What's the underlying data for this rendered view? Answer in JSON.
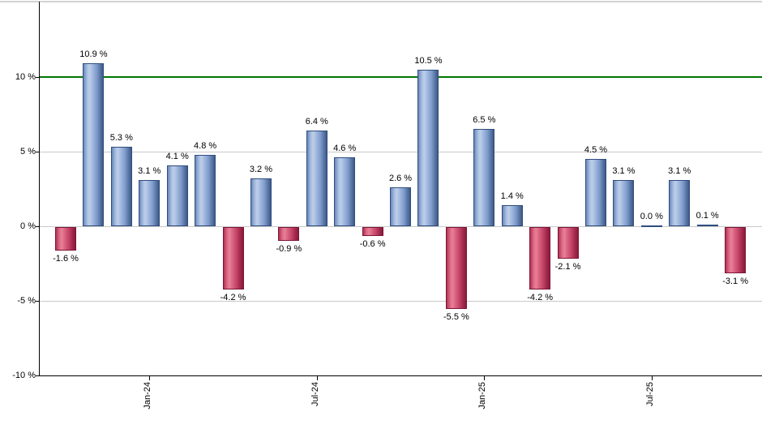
{
  "chart_data": {
    "type": "bar",
    "title": "",
    "values": [
      -1.6,
      10.9,
      5.3,
      3.1,
      4.1,
      4.8,
      -4.2,
      3.2,
      -0.9,
      6.4,
      4.6,
      -0.6,
      2.6,
      10.5,
      -5.5,
      6.5,
      1.4,
      -4.2,
      -2.1,
      4.5,
      3.1,
      0.0,
      3.1,
      0.1,
      -3.1
    ],
    "value_label_suffix": " %",
    "x_axis": {
      "ticks": [
        {
          "index": 3,
          "label": "Jan-24"
        },
        {
          "index": 9,
          "label": "Jul-24"
        },
        {
          "index": 15,
          "label": "Jan-25"
        },
        {
          "index": 21,
          "label": "Jul-25"
        }
      ]
    },
    "y_axis": {
      "ticks": [
        {
          "value": 10,
          "label": "10 %"
        },
        {
          "value": 5,
          "label": "5 %"
        },
        {
          "value": 0,
          "label": "0 %"
        },
        {
          "value": -5,
          "label": "-5 %"
        },
        {
          "value": -10,
          "label": "-10 %"
        }
      ],
      "min": -10,
      "max": 14.7,
      "grid": true
    },
    "threshold_line": {
      "value": 10,
      "color": "#007700"
    },
    "legend": "none",
    "colors": {
      "positive_bar": "#8fa9d3",
      "positive_bar_border": "#2f4d7d",
      "negative_bar": "#c94a6b",
      "negative_bar_border": "#7c1634",
      "gridline": "#c9c9c9",
      "axis": "#000000",
      "label_text": "#000000",
      "background": "#ffffff"
    }
  }
}
